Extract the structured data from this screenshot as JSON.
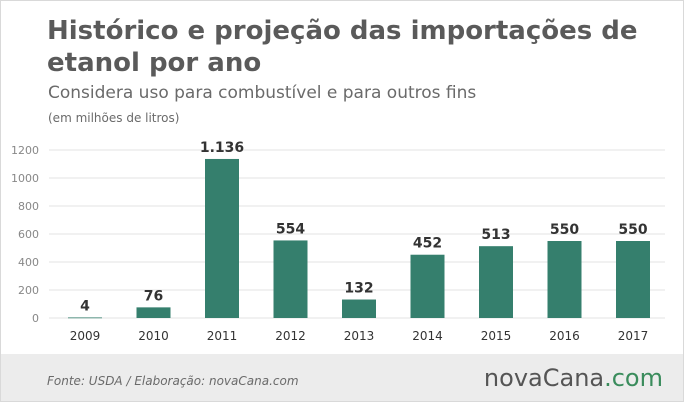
{
  "chart_data": {
    "type": "bar",
    "title": "Histórico e projeção das importações de etanol por ano",
    "subtitle": "Considera uso para combustível e para outros fins",
    "units": "(em milhões de litros)",
    "categories": [
      "2009",
      "2010",
      "2011",
      "2012",
      "2013",
      "2014",
      "2015",
      "2016",
      "2017"
    ],
    "values": [
      4,
      76,
      1136,
      554,
      132,
      452,
      513,
      550,
      550
    ],
    "value_labels": [
      "4",
      "76",
      "1.136",
      "554",
      "132",
      "452",
      "513",
      "550",
      "550"
    ],
    "ylim": [
      0,
      1200
    ],
    "yticks": [
      0,
      200,
      400,
      600,
      800,
      1000,
      1200
    ],
    "ytick_labels": [
      "0",
      "200",
      "400",
      "600",
      "800",
      "1000",
      "1200"
    ],
    "grid": true,
    "legend": "none",
    "colors": {
      "bar": "#357f6d",
      "grid": "#e3e3e3",
      "label": "#333333",
      "tick": "#666666"
    }
  },
  "footer": {
    "source": "Fonte:  USDA / Elaboração:  novaCana.com",
    "brand_part1": "novaCana",
    "brand_part2": ".com"
  }
}
